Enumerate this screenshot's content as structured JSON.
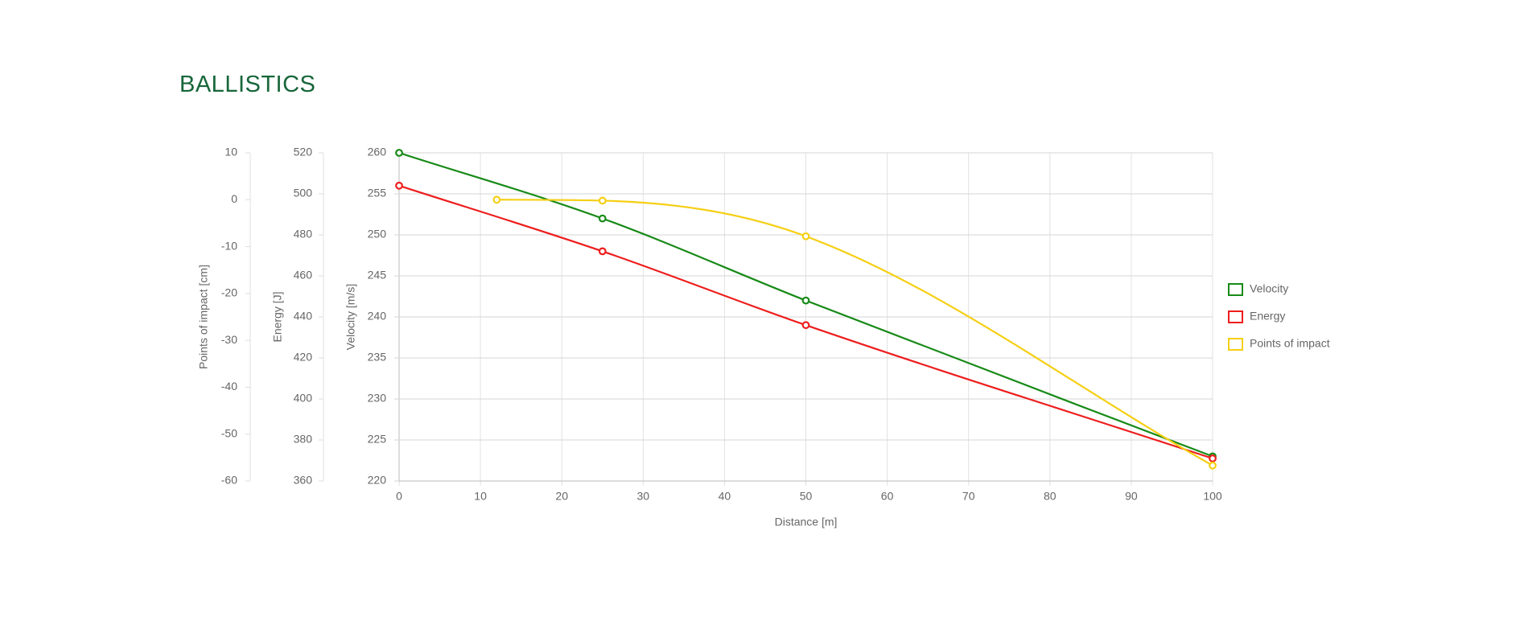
{
  "chart_data": {
    "type": "line",
    "title": "BALLISTICS",
    "x_label": "Distance [m]",
    "xlim": [
      0,
      100
    ],
    "xticks": [
      0,
      10,
      20,
      30,
      40,
      50,
      60,
      70,
      80,
      90,
      100
    ],
    "y_label": "Velocity [m/s]",
    "ylim": [
      220,
      260
    ],
    "yticks": [
      220,
      225,
      230,
      235,
      240,
      245,
      250,
      255,
      260
    ],
    "y2_label": "Energy [J]",
    "y2lim": [
      360,
      520
    ],
    "y2ticks": [
      360,
      380,
      400,
      420,
      440,
      460,
      480,
      500,
      520
    ],
    "y3_label": "Points of impact [cm]",
    "y3lim": [
      -60,
      10
    ],
    "y3ticks": [
      -60,
      -50,
      -40,
      -30,
      -20,
      -10,
      0,
      10
    ],
    "grid": true,
    "legend": "right",
    "series": [
      {
        "name": "Velocity",
        "color": "#188a18",
        "axis": "y",
        "x": [
          0,
          25,
          50,
          100
        ],
        "values": [
          260,
          252,
          242,
          223
        ]
      },
      {
        "name": "Energy",
        "color": "#ee1d1d",
        "axis": "y2",
        "x": [
          0,
          25,
          50,
          100
        ],
        "values": [
          504,
          472,
          436,
          371
        ]
      },
      {
        "name": "Points of impact",
        "color": "#f5cf14",
        "axis": "y3",
        "x": [
          12,
          25,
          50,
          100
        ],
        "values": [
          0,
          -0.2,
          -7.8,
          -56.7
        ]
      }
    ]
  }
}
